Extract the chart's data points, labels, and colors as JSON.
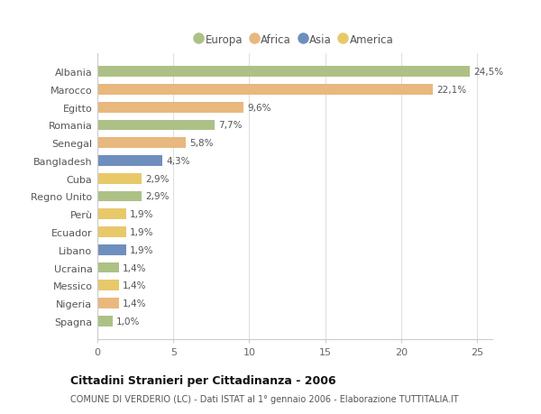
{
  "countries": [
    "Albania",
    "Marocco",
    "Egitto",
    "Romania",
    "Senegal",
    "Bangladesh",
    "Cuba",
    "Regno Unito",
    "Perù",
    "Ecuador",
    "Libano",
    "Ucraina",
    "Messico",
    "Nigeria",
    "Spagna"
  ],
  "values": [
    24.5,
    22.1,
    9.6,
    7.7,
    5.8,
    4.3,
    2.9,
    2.9,
    1.9,
    1.9,
    1.9,
    1.4,
    1.4,
    1.4,
    1.0
  ],
  "labels": [
    "24,5%",
    "22,1%",
    "9,6%",
    "7,7%",
    "5,8%",
    "4,3%",
    "2,9%",
    "2,9%",
    "1,9%",
    "1,9%",
    "1,9%",
    "1,4%",
    "1,4%",
    "1,4%",
    "1,0%"
  ],
  "continents": [
    "Europa",
    "Africa",
    "Africa",
    "Europa",
    "Africa",
    "Asia",
    "America",
    "Europa",
    "America",
    "America",
    "Asia",
    "Europa",
    "America",
    "Africa",
    "Europa"
  ],
  "continent_colors": {
    "Europa": "#adc186",
    "Africa": "#e8b87e",
    "Asia": "#6e8fbe",
    "America": "#e8c96a"
  },
  "title": "Cittadini Stranieri per Cittadinanza - 2006",
  "subtitle": "COMUNE DI VERDERIO (LC) - Dati ISTAT al 1° gennaio 2006 - Elaborazione TUTTITALIA.IT",
  "xlim": [
    0,
    26
  ],
  "xticks": [
    0,
    5,
    10,
    15,
    20,
    25
  ],
  "background_color": "#ffffff",
  "grid_color": "#e0e0e0",
  "bar_height": 0.6,
  "legend_order": [
    "Europa",
    "Africa",
    "Asia",
    "America"
  ]
}
